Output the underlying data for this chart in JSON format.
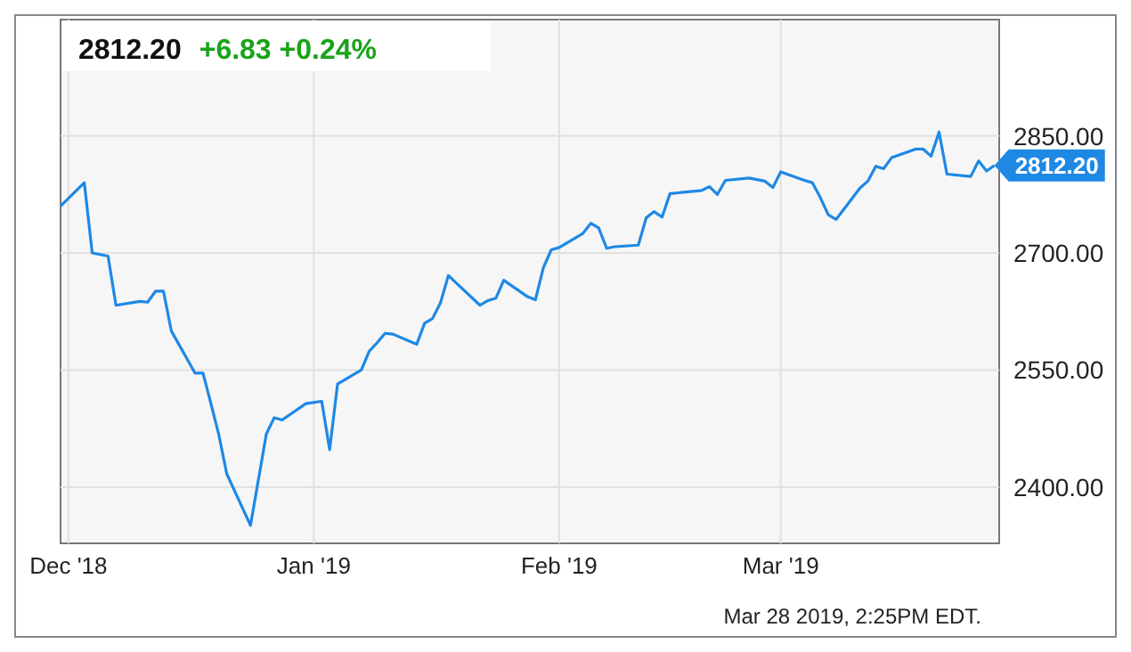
{
  "chart_data": {
    "type": "line",
    "title": "2812.20",
    "subtitle": "+6.83  +0.24%",
    "annotations": [
      "Mar 28 2019, 2:25PM EDT."
    ],
    "x": [
      "2018-11-30",
      "2018-12-03",
      "2018-12-04",
      "2018-12-06",
      "2018-12-07",
      "2018-12-10",
      "2018-12-11",
      "2018-12-12",
      "2018-12-13",
      "2018-12-14",
      "2018-12-17",
      "2018-12-18",
      "2018-12-19",
      "2018-12-20",
      "2018-12-21",
      "2018-12-24",
      "2018-12-26",
      "2018-12-27",
      "2018-12-28",
      "2018-12-31",
      "2019-01-02",
      "2019-01-03",
      "2019-01-04",
      "2019-01-07",
      "2019-01-08",
      "2019-01-09",
      "2019-01-10",
      "2019-01-11",
      "2019-01-14",
      "2019-01-15",
      "2019-01-16",
      "2019-01-17",
      "2019-01-18",
      "2019-01-22",
      "2019-01-23",
      "2019-01-24",
      "2019-01-25",
      "2019-01-28",
      "2019-01-29",
      "2019-01-30",
      "2019-01-31",
      "2019-02-01",
      "2019-02-04",
      "2019-02-05",
      "2019-02-06",
      "2019-02-07",
      "2019-02-08",
      "2019-02-11",
      "2019-02-12",
      "2019-02-13",
      "2019-02-14",
      "2019-02-15",
      "2019-02-19",
      "2019-02-20",
      "2019-02-21",
      "2019-02-22",
      "2019-02-25",
      "2019-02-26",
      "2019-02-27",
      "2019-02-28",
      "2019-03-01",
      "2019-03-04",
      "2019-03-05",
      "2019-03-06",
      "2019-03-07",
      "2019-03-08",
      "2019-03-11",
      "2019-03-12",
      "2019-03-13",
      "2019-03-14",
      "2019-03-15",
      "2019-03-18",
      "2019-03-19",
      "2019-03-20",
      "2019-03-21",
      "2019-03-22",
      "2019-03-25",
      "2019-03-26",
      "2019-03-27",
      "2019-03-28"
    ],
    "series": [
      {
        "color": "#1e88e5",
        "values": [
          2760,
          2790,
          2700,
          2696,
          2633,
          2638,
          2637,
          2651,
          2651,
          2600,
          2546,
          2546,
          2507,
          2467,
          2417,
          2351,
          2468,
          2489,
          2486,
          2507,
          2510,
          2448,
          2532,
          2550,
          2574,
          2585,
          2597,
          2596,
          2583,
          2610,
          2616,
          2636,
          2671,
          2633,
          2639,
          2642,
          2665,
          2644,
          2640,
          2681,
          2704,
          2707,
          2725,
          2738,
          2732,
          2706,
          2708,
          2710,
          2745,
          2753,
          2746,
          2776,
          2780,
          2785,
          2775,
          2793,
          2796,
          2794,
          2792,
          2784,
          2804,
          2793,
          2790,
          2771,
          2749,
          2743,
          2783,
          2792,
          2811,
          2808,
          2822,
          2833,
          2833,
          2824,
          2855,
          2801,
          2798,
          2818,
          2805,
          2812.2
        ],
        "value_labels": [
          null,
          null,
          null,
          null,
          null,
          null,
          null,
          null,
          null,
          null,
          null,
          null,
          null,
          null,
          null,
          null,
          null,
          null,
          null,
          null,
          null,
          null,
          null,
          null,
          null,
          null,
          null,
          null,
          null,
          null,
          null,
          null,
          null,
          null,
          null,
          null,
          null,
          null,
          null,
          null,
          null,
          null,
          null,
          null,
          null,
          null,
          null,
          null,
          null,
          null,
          null,
          null,
          null,
          null,
          null,
          null,
          null,
          null,
          null,
          null,
          null,
          null,
          null,
          null,
          null,
          null,
          null,
          null,
          null,
          null,
          null,
          null,
          null,
          null,
          null,
          null,
          null,
          null,
          null,
          "2812.20"
        ]
      }
    ],
    "xlim": [
      "2018-11-30",
      "2019-03-28T14:25"
    ],
    "xticks": [
      {
        "value": "2018-12-01",
        "label": "Dec '18"
      },
      {
        "value": "2019-01-01",
        "label": "Jan '19"
      },
      {
        "value": "2019-02-01",
        "label": "Feb '19"
      },
      {
        "value": "2019-03-01",
        "label": "Mar '19"
      }
    ],
    "ylim": [
      2328,
      2999
    ],
    "yticks": [
      {
        "value": 2400,
        "label": "2400.00"
      },
      {
        "value": 2550,
        "label": "2550.00"
      },
      {
        "value": 2700,
        "label": "2700.00"
      },
      {
        "value": 2850,
        "label": "2850.00"
      }
    ],
    "grid": true,
    "marker": "none",
    "line_style": "solid"
  }
}
